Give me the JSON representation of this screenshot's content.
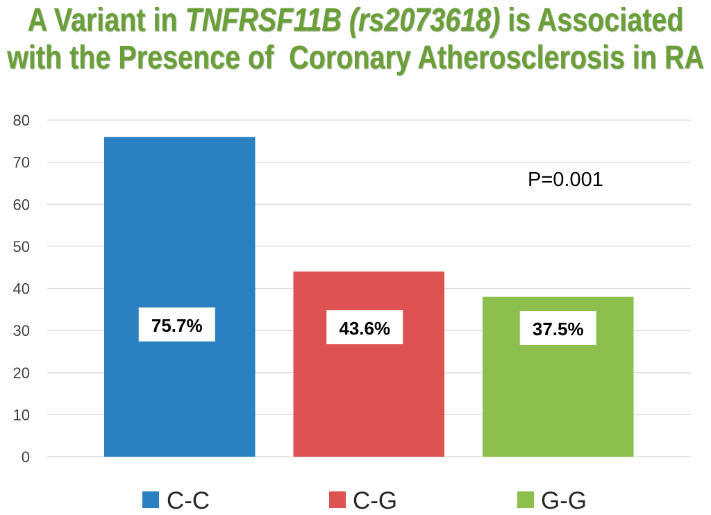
{
  "chart_data": {
    "type": "bar",
    "title": {
      "line1": [
        "A Variant in ",
        "TNFRSF11B (rs2073618)",
        " is Associated"
      ],
      "line2": "with the Presence of  Coronary Atherosclerosis in RA"
    },
    "categories": [
      "C-C",
      "C-G",
      "G-G"
    ],
    "values": [
      76,
      44,
      38
    ],
    "data_labels": [
      "75.7%",
      "43.6%",
      "37.5%"
    ],
    "colors": [
      "#2b80c1",
      "#df5252",
      "#8dbf4f"
    ],
    "xlabel": "",
    "ylabel": "",
    "ylim": [
      0,
      80
    ],
    "yticks": [
      0,
      10,
      20,
      30,
      40,
      50,
      60,
      70,
      80
    ],
    "grid": true,
    "legend": "bottom",
    "annotations": [
      "P=0.001"
    ]
  }
}
